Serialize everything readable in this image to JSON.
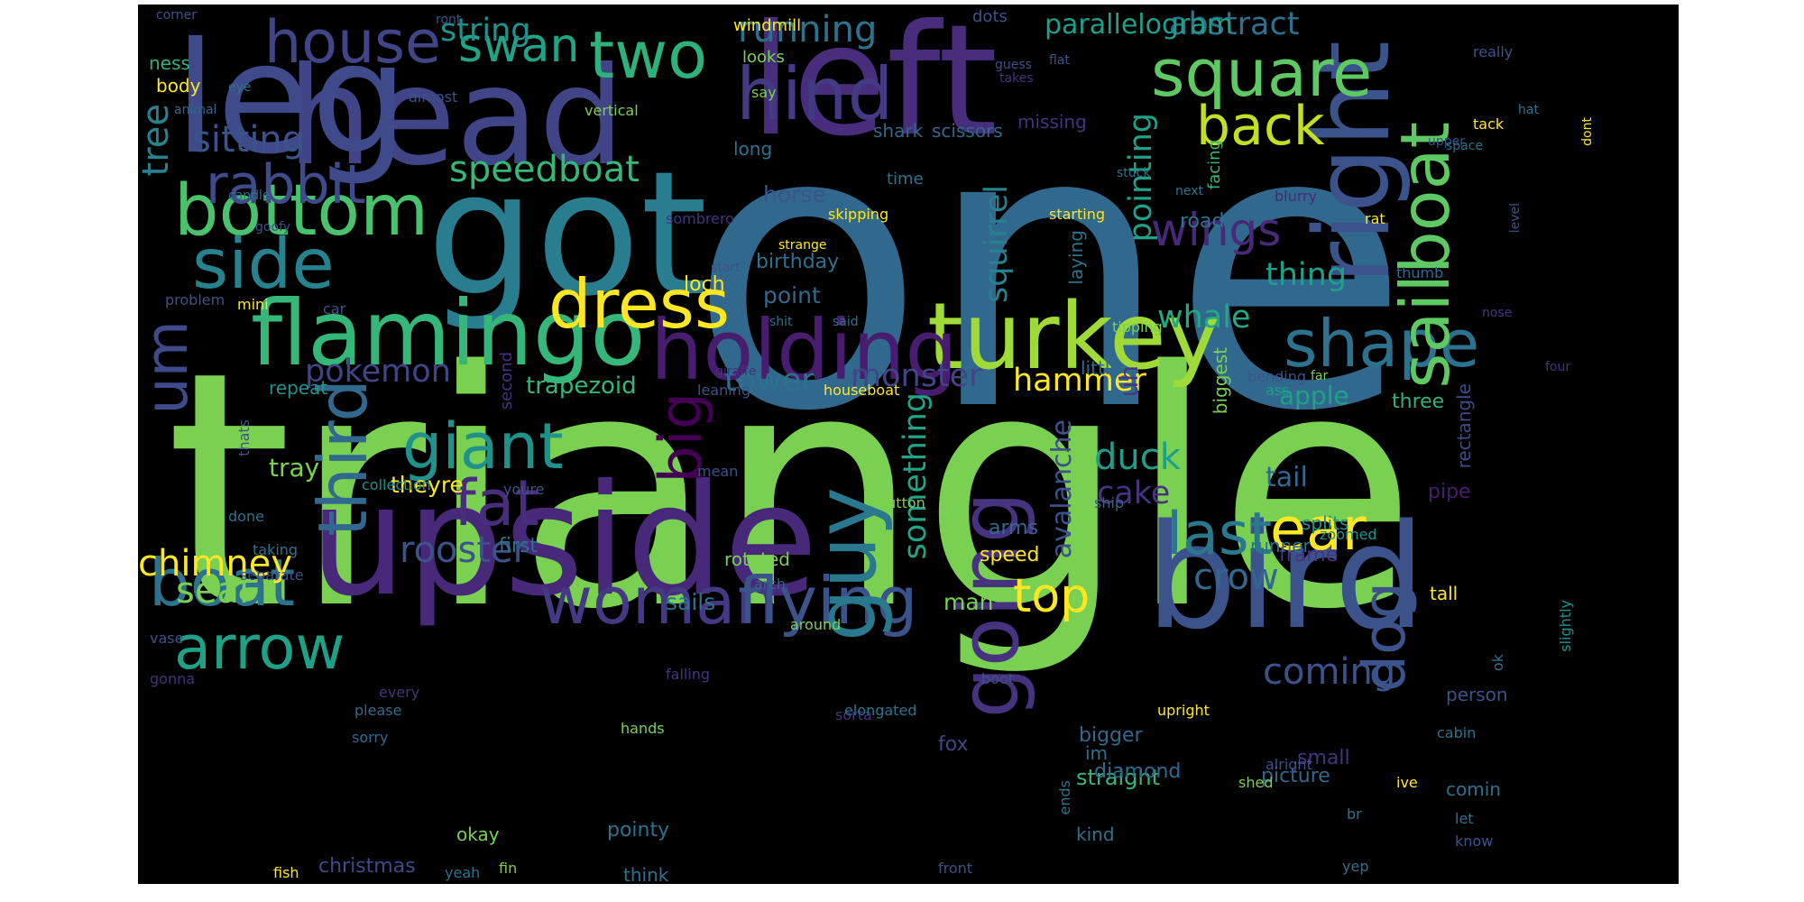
{
  "background_color": "#000000",
  "palette": [
    "#440154",
    "#46327e",
    "#365c8d",
    "#277f8e",
    "#1fa187",
    "#4ac16d",
    "#a0da39",
    "#fde725"
  ],
  "words": [
    {
      "text": "one",
      "color": "#31688e"
    },
    {
      "text": "triangle",
      "color": "#7ad151"
    },
    {
      "text": "got",
      "color": "#287d8e"
    },
    {
      "text": "upside",
      "color": "#482878"
    },
    {
      "text": "head",
      "color": "#414487"
    },
    {
      "text": "leg",
      "color": "#3e4a89"
    },
    {
      "text": "left",
      "color": "#472d7b"
    },
    {
      "text": "bird",
      "color": "#3b528b"
    },
    {
      "text": "turkey",
      "color": "#a0da39"
    },
    {
      "text": "right",
      "color": "#3b528b"
    },
    {
      "text": "flamingo",
      "color": "#35b779"
    },
    {
      "text": "holding",
      "color": "#481c6e"
    },
    {
      "text": "bottom",
      "color": "#4ac16d"
    },
    {
      "text": "square",
      "color": "#5ec962"
    },
    {
      "text": "two",
      "color": "#2db27d"
    },
    {
      "text": "hind",
      "color": "#443983"
    },
    {
      "text": "house",
      "color": "#414487"
    },
    {
      "text": "dress",
      "color": "#fde725"
    },
    {
      "text": "side",
      "color": "#26828e"
    },
    {
      "text": "rabbit",
      "color": "#3e4a89"
    },
    {
      "text": "woman",
      "color": "#443983"
    },
    {
      "text": "flying",
      "color": "#3b528b"
    },
    {
      "text": "boat",
      "color": "#2c728e"
    },
    {
      "text": "arrow",
      "color": "#1fa187"
    },
    {
      "text": "guy",
      "color": "#2a788e"
    },
    {
      "text": "going",
      "color": "#46327e"
    },
    {
      "text": "giant",
      "color": "#21918c"
    },
    {
      "text": "third",
      "color": "#31688e"
    },
    {
      "text": "fat",
      "color": "#472d7b"
    },
    {
      "text": "shape",
      "color": "#2c728e"
    },
    {
      "text": "sailboat",
      "color": "#5ec962"
    },
    {
      "text": "back",
      "color": "#c2df23"
    },
    {
      "text": "last",
      "color": "#2a788e"
    },
    {
      "text": "ear",
      "color": "#fde725"
    },
    {
      "text": "top",
      "color": "#fde725"
    },
    {
      "text": "dog",
      "color": "#3b528b"
    },
    {
      "text": "swan",
      "color": "#20a486"
    },
    {
      "text": "wings",
      "color": "#482878"
    },
    {
      "text": "big",
      "color": "#440154"
    },
    {
      "text": "um",
      "color": "#3e4a89"
    },
    {
      "text": "speedboat",
      "color": "#35b779"
    },
    {
      "text": "sitting",
      "color": "#3b528b"
    },
    {
      "text": "running",
      "color": "#2c728e"
    },
    {
      "text": "string",
      "color": "#21918c"
    },
    {
      "text": "abstract",
      "color": "#2c728e"
    },
    {
      "text": "parallelogram",
      "color": "#1f9e89"
    },
    {
      "text": "tree",
      "color": "#26828e"
    },
    {
      "text": "chimney",
      "color": "#fde725"
    },
    {
      "text": "rooster",
      "color": "#3b528b"
    },
    {
      "text": "crow",
      "color": "#31688e"
    },
    {
      "text": "coming",
      "color": "#3b528b"
    },
    {
      "text": "seal",
      "color": "#7ad151"
    },
    {
      "text": "duck",
      "color": "#1f9e89"
    },
    {
      "text": "cake",
      "color": "#46327e"
    },
    {
      "text": "whale",
      "color": "#22a884"
    },
    {
      "text": "monster",
      "color": "#414487"
    },
    {
      "text": "pokemon",
      "color": "#414487"
    },
    {
      "text": "tower",
      "color": "#2c728e"
    },
    {
      "text": "hammer",
      "color": "#fde725"
    },
    {
      "text": "thing",
      "color": "#1f9e89"
    },
    {
      "text": "squirrel",
      "color": "#26828e"
    },
    {
      "text": "pointing",
      "color": "#1fa187"
    },
    {
      "text": "something",
      "color": "#20a486"
    },
    {
      "text": "avalanche",
      "color": "#3b528b"
    },
    {
      "text": "trapezoid",
      "color": "#35b779"
    },
    {
      "text": "uh",
      "color": "#443983"
    },
    {
      "text": "apple",
      "color": "#1fa187"
    },
    {
      "text": "tail",
      "color": "#31688e"
    },
    {
      "text": "tray",
      "color": "#7ad151"
    },
    {
      "text": "theyre",
      "color": "#fde725"
    },
    {
      "text": "man",
      "color": "#7ad151"
    },
    {
      "text": "speed",
      "color": "#fde725"
    },
    {
      "text": "arms",
      "color": "#31688e"
    },
    {
      "text": "sails",
      "color": "#2c728e"
    },
    {
      "text": "pipe",
      "color": "#481c6e"
    },
    {
      "text": "loch",
      "color": "#fde725"
    },
    {
      "text": "point",
      "color": "#31688e"
    },
    {
      "text": "birthday",
      "color": "#2c728e"
    },
    {
      "text": "horse",
      "color": "#3b528b"
    },
    {
      "text": "road",
      "color": "#2c728e"
    },
    {
      "text": "christmas",
      "color": "#3e4a89"
    },
    {
      "text": "fox",
      "color": "#414487"
    },
    {
      "text": "bigger",
      "color": "#31688e"
    },
    {
      "text": "picture",
      "color": "#31688e"
    },
    {
      "text": "straight",
      "color": "#35b779"
    },
    {
      "text": "pointy",
      "color": "#2c728e"
    },
    {
      "text": "diamond",
      "color": "#31688e"
    },
    {
      "text": "small",
      "color": "#46327e"
    },
    {
      "text": "three",
      "color": "#2db27d"
    },
    {
      "text": "rectangle",
      "color": "#3e4a89"
    },
    {
      "text": "frame",
      "color": "#46327e"
    },
    {
      "text": "runner",
      "color": "#2c728e"
    },
    {
      "text": "splits",
      "color": "#21918c"
    },
    {
      "text": "rotated",
      "color": "#7ad151"
    },
    {
      "text": "first",
      "color": "#2c728e"
    },
    {
      "text": "tall",
      "color": "#fde725"
    },
    {
      "text": "ness",
      "color": "#2db27d"
    },
    {
      "text": "body",
      "color": "#fde725"
    },
    {
      "text": "windmill",
      "color": "#fde725"
    },
    {
      "text": "dots",
      "color": "#3b528b"
    },
    {
      "text": "looks",
      "color": "#7ad151"
    },
    {
      "text": "say",
      "color": "#7ad151"
    },
    {
      "text": "almost",
      "color": "#3b528b"
    },
    {
      "text": "vertical",
      "color": "#7ad151"
    },
    {
      "text": "long",
      "color": "#2c728e"
    },
    {
      "text": "shark",
      "color": "#31688e"
    },
    {
      "text": "scissors",
      "color": "#31688e"
    },
    {
      "text": "missing",
      "color": "#46327e"
    },
    {
      "text": "time",
      "color": "#2c728e"
    },
    {
      "text": "facing",
      "color": "#35b779"
    },
    {
      "text": "sombrero",
      "color": "#46327e"
    },
    {
      "text": "skipping",
      "color": "#fde725"
    },
    {
      "text": "starting",
      "color": "#fde725"
    },
    {
      "text": "blurry",
      "color": "#482878"
    },
    {
      "text": "rat",
      "color": "#fde725"
    },
    {
      "text": "thumb",
      "color": "#31688e"
    },
    {
      "text": "laying",
      "color": "#2c728e"
    },
    {
      "text": "little",
      "color": "#31688e"
    },
    {
      "text": "biggest",
      "color": "#7ad151"
    },
    {
      "text": "bending",
      "color": "#3b528b"
    },
    {
      "text": "ass",
      "color": "#1f9e89"
    },
    {
      "text": "houseboat",
      "color": "#fde725"
    },
    {
      "text": "leaning",
      "color": "#3b528b"
    },
    {
      "text": "repeat",
      "color": "#21918c"
    },
    {
      "text": "second",
      "color": "#46327e"
    },
    {
      "text": "car",
      "color": "#3b528b"
    },
    {
      "text": "mini",
      "color": "#fde725"
    },
    {
      "text": "problem",
      "color": "#3b528b"
    },
    {
      "text": "thats",
      "color": "#3b528b"
    },
    {
      "text": "collection",
      "color": "#21918c"
    },
    {
      "text": "youre",
      "color": "#3b528b"
    },
    {
      "text": "mean",
      "color": "#3b528b"
    },
    {
      "text": "button",
      "color": "#7ad151"
    },
    {
      "text": "ship",
      "color": "#31688e"
    },
    {
      "text": "zoomed",
      "color": "#21918c"
    },
    {
      "text": "arch",
      "color": "#31688e"
    },
    {
      "text": "done",
      "color": "#2c728e"
    },
    {
      "text": "taking",
      "color": "#2c728e"
    },
    {
      "text": "separate",
      "color": "#3b528b"
    },
    {
      "text": "vase",
      "color": "#3b528b"
    },
    {
      "text": "gonna",
      "color": "#46327e"
    },
    {
      "text": "every",
      "color": "#46327e"
    },
    {
      "text": "please",
      "color": "#31688e"
    },
    {
      "text": "sorta",
      "color": "#46327e"
    },
    {
      "text": "sorry",
      "color": "#31688e"
    },
    {
      "text": "hands",
      "color": "#7ad151"
    },
    {
      "text": "fish",
      "color": "#fde725"
    },
    {
      "text": "fin",
      "color": "#7ad151"
    },
    {
      "text": "yeah",
      "color": "#2c728e"
    },
    {
      "text": "okay",
      "color": "#7ad151"
    },
    {
      "text": "think",
      "color": "#2c728e"
    },
    {
      "text": "around",
      "color": "#7ad151"
    },
    {
      "text": "falling",
      "color": "#46327e"
    },
    {
      "text": "elongated",
      "color": "#2c728e"
    },
    {
      "text": "boot",
      "color": "#3b528b"
    },
    {
      "text": "upright",
      "color": "#fde725"
    },
    {
      "text": "front",
      "color": "#3b528b"
    },
    {
      "text": "kind",
      "color": "#2c728e"
    },
    {
      "text": "im",
      "color": "#2c728e"
    },
    {
      "text": "ends",
      "color": "#2c728e"
    },
    {
      "text": "shed",
      "color": "#7ad151"
    },
    {
      "text": "alright",
      "color": "#3b528b"
    },
    {
      "text": "br",
      "color": "#2c728e"
    },
    {
      "text": "ive",
      "color": "#fde725"
    },
    {
      "text": "comin",
      "color": "#2c728e"
    },
    {
      "text": "let",
      "color": "#2c728e"
    },
    {
      "text": "know",
      "color": "#3b528b"
    },
    {
      "text": "yep",
      "color": "#2c728e"
    },
    {
      "text": "person",
      "color": "#3b528b"
    },
    {
      "text": "cabin",
      "color": "#2c728e"
    },
    {
      "text": "ok",
      "color": "#2c728e"
    },
    {
      "text": "slightly",
      "color": "#21918c"
    },
    {
      "text": "corner",
      "color": "#3b528b"
    },
    {
      "text": "ront",
      "color": "#3b528b"
    },
    {
      "text": "guess",
      "color": "#3b528b"
    },
    {
      "text": "flat",
      "color": "#3b528b"
    },
    {
      "text": "takes",
      "color": "#46327e"
    },
    {
      "text": "really",
      "color": "#3b528b"
    },
    {
      "text": "eye",
      "color": "#2c728e"
    },
    {
      "text": "animal",
      "color": "#31688e"
    },
    {
      "text": "upper",
      "color": "#3b528b"
    },
    {
      "text": "hat",
      "color": "#2c728e"
    },
    {
      "text": "tack",
      "color": "#fde725"
    },
    {
      "text": "stuck",
      "color": "#2c728e"
    },
    {
      "text": "dont",
      "color": "#fde725"
    },
    {
      "text": "space",
      "color": "#2c728e"
    },
    {
      "text": "candle",
      "color": "#2c728e"
    },
    {
      "text": "goofy",
      "color": "#3b528b"
    },
    {
      "text": "next",
      "color": "#2c728e"
    },
    {
      "text": "level",
      "color": "#3b528b"
    },
    {
      "text": "strange",
      "color": "#fde725"
    },
    {
      "text": "start",
      "color": "#3b528b"
    },
    {
      "text": "shit",
      "color": "#2c728e"
    },
    {
      "text": "said",
      "color": "#2c728e"
    },
    {
      "text": "nose",
      "color": "#46327e"
    },
    {
      "text": "tipping",
      "color": "#7ad151"
    },
    {
      "text": "giraffe",
      "color": "#46327e"
    },
    {
      "text": "far",
      "color": "#7ad151"
    },
    {
      "text": "four",
      "color": "#46327e"
    }
  ]
}
